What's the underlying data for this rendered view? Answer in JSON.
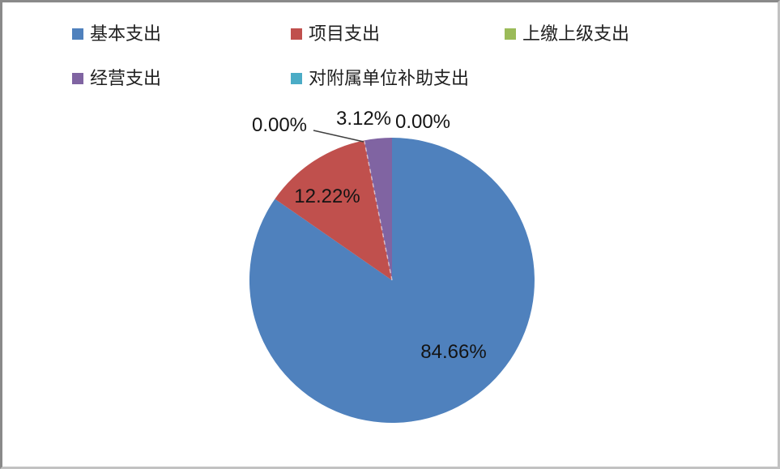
{
  "frame": {
    "background": "#ffffff",
    "border_dark": "#8a8a8a",
    "border_light": "#c2c2c2"
  },
  "legend": {
    "position": "top",
    "items": [
      {
        "label": "基本支出",
        "color": "#4F81BD"
      },
      {
        "label": "项目支出",
        "color": "#C0504D"
      },
      {
        "label": "上缴上级支出",
        "color": "#9BBB59"
      },
      {
        "label": "经营支出",
        "color": "#8064A2"
      },
      {
        "label": "对附属单位补助支出",
        "color": "#4BACC6"
      }
    ]
  },
  "chart_data": {
    "type": "pie",
    "title": "",
    "categories": [
      "基本支出",
      "项目支出",
      "上缴上级支出",
      "经营支出",
      "对附属单位补助支出"
    ],
    "values": [
      84.66,
      12.22,
      0.0,
      3.12,
      0.0
    ],
    "unit": "%",
    "labels": [
      "84.66%",
      "12.22%",
      "0.00%",
      "3.12%",
      "0.00%"
    ],
    "colors": [
      "#4F81BD",
      "#C0504D",
      "#9BBB59",
      "#8064A2",
      "#4BACC6"
    ],
    "start_angle_deg": 0,
    "direction": "clockwise",
    "legend_position": "top",
    "label_leader_line": {
      "from_label": "0.00%",
      "to_slice": "上缴上级支出"
    }
  }
}
